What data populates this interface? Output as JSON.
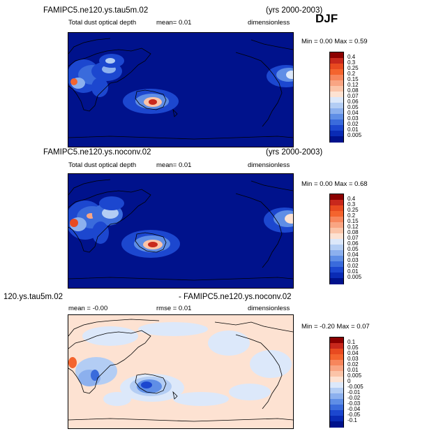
{
  "season": "DJF",
  "panels": [
    {
      "title_left": "FAMIPC5.ne120.ys.tau5m.02",
      "title_right": "(yrs 2000-2003)",
      "subtitle_left": "Total dust optical depth",
      "subtitle_mid": "mean=    0.01",
      "subtitle_right": "dimensionless",
      "stats": "Min =    0.00  Max =    0.59",
      "colorbar": {
        "labels": [
          "0.4",
          "0.3",
          "0.25",
          "0.2",
          "0.15",
          "0.12",
          "0.08",
          "0.07",
          "0.06",
          "0.05",
          "0.04",
          "0.03",
          "0.02",
          "0.01",
          "0.005"
        ],
        "colors": [
          "#8b0000",
          "#c8281c",
          "#e84a20",
          "#f4642e",
          "#f7865c",
          "#f9a583",
          "#fbc4a8",
          "#fde2d2",
          "#dce8fa",
          "#b3cdf4",
          "#8cb0ee",
          "#5f8ee6",
          "#3a6bdc",
          "#1c47cf",
          "#0a2bb5",
          "#00128c"
        ]
      },
      "min_value": 0.0,
      "max_value": 0.59
    },
    {
      "title_left": "FAMIPC5.ne120.ys.noconv.02",
      "title_right": "(yrs 2000-2003)",
      "subtitle_left": "Total dust optical depth",
      "subtitle_mid": "mean=    0.01",
      "subtitle_right": "dimensionless",
      "stats": "Min =    0.00  Max =    0.68",
      "colorbar": {
        "labels": [
          "0.4",
          "0.3",
          "0.25",
          "0.2",
          "0.15",
          "0.12",
          "0.08",
          "0.07",
          "0.06",
          "0.05",
          "0.04",
          "0.03",
          "0.02",
          "0.01",
          "0.005"
        ],
        "colors": [
          "#8b0000",
          "#c8281c",
          "#e84a20",
          "#f4642e",
          "#f7865c",
          "#f9a583",
          "#fbc4a8",
          "#fde2d2",
          "#dce8fa",
          "#b3cdf4",
          "#8cb0ee",
          "#5f8ee6",
          "#3a6bdc",
          "#1c47cf",
          "#0a2bb5",
          "#00128c"
        ]
      },
      "min_value": 0.0,
      "max_value": 0.68
    },
    {
      "title_left": "120.ys.tau5m.02",
      "title_right": "- FAMIPC5.ne120.ys.noconv.02",
      "subtitle_left": "mean =   -0.00",
      "subtitle_mid": "rmse =    0.01",
      "subtitle_right": "dimensionless",
      "stats": "Min =  -0.20  Max =    0.07",
      "colorbar": {
        "labels": [
          "0.1",
          "0.05",
          "0.04",
          "0.03",
          "0.02",
          "0.01",
          "0.005",
          "0",
          "-0.005",
          "-0.01",
          "-0.02",
          "-0.03",
          "-0.04",
          "-0.05",
          "-0.1"
        ],
        "colors": [
          "#8b0000",
          "#c8281c",
          "#e84a20",
          "#f4642e",
          "#f7865c",
          "#f9a583",
          "#fbc4a8",
          "#fde2d2",
          "#dce8fa",
          "#b3cdf4",
          "#8cb0ee",
          "#5f8ee6",
          "#3a6bdc",
          "#1c47cf",
          "#0a2bb5",
          "#00128c"
        ]
      },
      "min_value": -0.2,
      "max_value": 0.07
    }
  ]
}
